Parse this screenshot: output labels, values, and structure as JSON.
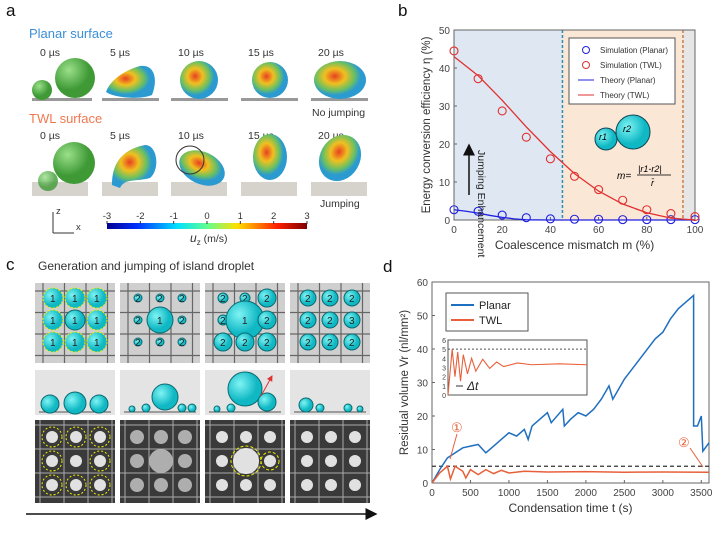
{
  "panels": {
    "a": "a",
    "b": "b",
    "c": "c",
    "d": "d"
  },
  "panel_a": {
    "planar_title": "Planar surface",
    "twl_title": "TWL surface",
    "times": [
      "0 µs",
      "5 µs",
      "10 µs",
      "15 µs",
      "20 µs"
    ],
    "planar_result": "No jumping",
    "twl_result": "Jumping",
    "axis_z": "z",
    "axis_x": "x",
    "colorbar": {
      "ticks": [
        "-3",
        "-2",
        "-1",
        "0",
        "1",
        "2",
        "3"
      ],
      "label": "u",
      "label_sub": "z",
      "unit": " (m/s)"
    },
    "colors": {
      "planar": "#3a8fd6",
      "twl": "#f07850",
      "droplet": "#5cb84a"
    }
  },
  "panel_c": {
    "title": "Generation and jumping of island droplet",
    "labels": [
      "1",
      "2",
      "3"
    ]
  },
  "chart_data": [
    {
      "type": "scatter+line",
      "panel": "b",
      "xlabel": "Coalescence mismatch m (%)",
      "ylabel": "Energy conversion efficiency η (%)",
      "xlim": [
        0,
        100
      ],
      "ylim": [
        0,
        50
      ],
      "xticks": [
        "0",
        "20",
        "40",
        "60",
        "80",
        "100"
      ],
      "yticks": [
        "0",
        "10",
        "20",
        "30",
        "40",
        "50"
      ],
      "regions": [
        {
          "from": 0,
          "to": 45,
          "color": "#dfe8f2"
        },
        {
          "from": 45,
          "to": 95,
          "color": "#fbe7d6"
        },
        {
          "from": 95,
          "to": 100,
          "color": "#e6e6e6"
        }
      ],
      "vlines": [
        {
          "x": 45,
          "color": "#2a8fb0"
        },
        {
          "x": 95,
          "color": "#c8804a"
        }
      ],
      "annotation": "Jumping Enhancement",
      "formula": {
        "lhs": "m=",
        "num": "|r1-r2|",
        "den": "r̄",
        "r1": "r1",
        "r2": "r2"
      },
      "legend": [
        "Simulation (Planar)",
        "Simulation (TWL)",
        "Theory (Planar)",
        "Theory (TWL)"
      ],
      "legend_position": "top-right",
      "series": [
        {
          "name": "Simulation (Planar)",
          "kind": "marker",
          "color": "#2020e0",
          "x": [
            0,
            10,
            20,
            30,
            40,
            50,
            60,
            70,
            80,
            90,
            100
          ],
          "y": [
            2.7,
            2.3,
            1.3,
            0.6,
            0.3,
            0.2,
            0.2,
            0.1,
            0.1,
            0.1,
            0.1
          ]
        },
        {
          "name": "Simulation (TWL)",
          "kind": "marker",
          "color": "#e03030",
          "x": [
            0,
            10,
            20,
            30,
            40,
            50,
            60,
            70,
            80,
            90,
            100
          ],
          "y": [
            44.5,
            37.2,
            28.7,
            21.8,
            16.1,
            11.5,
            8.0,
            5.2,
            2.7,
            1.7,
            0.9
          ]
        },
        {
          "name": "Theory (Planar)",
          "kind": "line",
          "color": "#2020e0",
          "x": [
            0,
            5,
            10,
            15,
            20,
            25,
            30,
            40,
            50,
            60,
            70,
            80,
            90,
            100
          ],
          "y": [
            2.7,
            2.3,
            1.8,
            1.2,
            0.7,
            0.3,
            0.05,
            0,
            0,
            0,
            0,
            0,
            0,
            0
          ]
        },
        {
          "name": "Theory (TWL)",
          "kind": "line",
          "color": "#e03030",
          "x": [
            0,
            10,
            20,
            30,
            40,
            50,
            60,
            70,
            80,
            90,
            100
          ],
          "y": [
            43,
            38,
            31.5,
            24.5,
            18,
            12.2,
            7.6,
            4.2,
            1.9,
            0.5,
            0
          ]
        }
      ]
    },
    {
      "type": "line",
      "panel": "d",
      "xlabel": "Condensation time t (s)",
      "ylabel": "Residual volume Vr (nl/mm²)",
      "xlim": [
        0,
        3600
      ],
      "ylim": [
        0,
        60
      ],
      "xticks": [
        "0",
        "500",
        "1000",
        "1500",
        "2000",
        "2500",
        "3000",
        "3500"
      ],
      "yticks": [
        "0",
        "10",
        "20",
        "30",
        "40",
        "50",
        "60"
      ],
      "hline": 5,
      "markers": [
        "①",
        "②"
      ],
      "legend": [
        "Planar",
        "TWL"
      ],
      "legend_position": "top-left",
      "series": [
        {
          "name": "Planar",
          "color": "#1f6fc0",
          "x": [
            0,
            100,
            200,
            300,
            400,
            500,
            600,
            700,
            800,
            900,
            1000,
            1100,
            1200,
            1250,
            1300,
            1400,
            1500,
            1550,
            1700,
            1720,
            1800,
            1900,
            2000,
            2100,
            2200,
            2300,
            2350,
            2500,
            2700,
            2900,
            3000,
            3100,
            3200,
            3300,
            3400,
            3400,
            3450,
            3500,
            3520,
            3600
          ],
          "y": [
            0,
            4,
            7.5,
            9,
            10.5,
            11,
            11.5,
            9,
            11,
            13,
            15,
            14,
            16,
            13,
            17,
            19,
            21,
            18,
            22,
            17,
            19,
            21,
            20,
            22,
            25,
            29,
            25,
            31,
            37,
            43,
            45,
            49,
            52,
            54,
            56,
            17,
            17,
            20,
            9.5,
            12
          ]
        },
        {
          "name": "TWL",
          "color": "#e8603a",
          "x": [
            0,
            100,
            200,
            240,
            300,
            400,
            440,
            500,
            600,
            700,
            800,
            900,
            1000,
            1200,
            1500,
            2000,
            2500,
            3000,
            3600
          ],
          "y": [
            0,
            3,
            5,
            1.2,
            5,
            3.5,
            1.5,
            4,
            2.5,
            4,
            2.8,
            3.8,
            3,
            3.5,
            3.3,
            3.4,
            3.2,
            3.3,
            3.2
          ]
        }
      ],
      "inset": {
        "ylim": [
          0,
          6
        ],
        "yticks": [
          "0",
          "1",
          "2",
          "3",
          "4",
          "5",
          "6"
        ],
        "hline": 5,
        "annotation": "Δt",
        "series": {
          "x": [
            0,
            3,
            5,
            7,
            9,
            11,
            14,
            17,
            20,
            25,
            30,
            35,
            40,
            50,
            60,
            80,
            100
          ],
          "y": [
            0,
            5,
            2,
            4.7,
            1.5,
            4.4,
            2.3,
            4,
            2.6,
            3.9,
            2.9,
            3.6,
            3.1,
            3.5,
            3.3,
            3.4,
            3.3
          ]
        }
      }
    }
  ]
}
